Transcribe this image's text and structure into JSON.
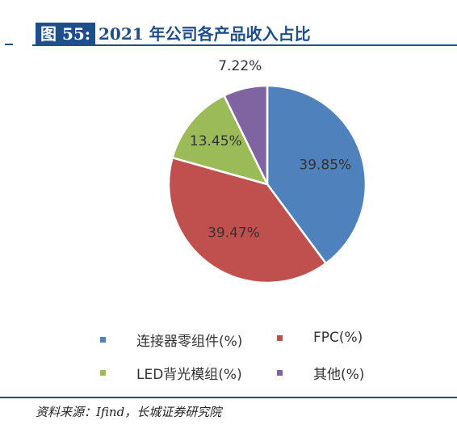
{
  "figure": {
    "label": "图 55:",
    "title": "2021 年公司各产品收入占比"
  },
  "chart_data": {
    "type": "pie",
    "slices": [
      {
        "name": "连接器零组件(%)",
        "value": 39.85,
        "label": "39.85%",
        "color": "#4f81bd"
      },
      {
        "name": "FPC(%)",
        "value": 39.47,
        "label": "39.47%",
        "color": "#c0504d"
      },
      {
        "name": "LED背光模组(%)",
        "value": 13.45,
        "label": "13.45%",
        "color": "#9bbb59"
      },
      {
        "name": "其他(%)",
        "value": 7.22,
        "label": "7.22%",
        "color": "#8064a2"
      }
    ],
    "start_angle": "12 o'clock",
    "direction": "clockwise",
    "legend_placement": "bottom"
  },
  "source": "资料来源：Ifind，长城证券研究院"
}
